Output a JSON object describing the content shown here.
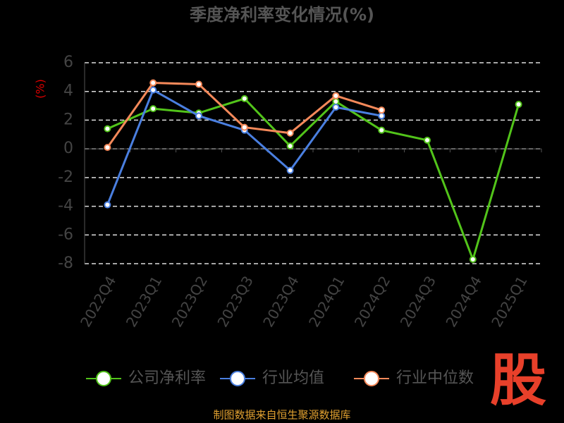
{
  "chart_data": {
    "type": "line",
    "title": "季度净利率变化情况(%)",
    "y_label": "(%)",
    "categories": [
      "2022Q4",
      "2023Q1",
      "2023Q2",
      "2023Q3",
      "2023Q4",
      "2024Q1",
      "2024Q2",
      "2024Q3",
      "2024Q4",
      "2025Q1"
    ],
    "series": [
      {
        "name": "公司净利率",
        "color": "#52c41a",
        "values": [
          1.4,
          2.8,
          2.5,
          3.5,
          0.2,
          3.3,
          1.3,
          0.6,
          -7.7,
          3.1
        ]
      },
      {
        "name": "行业均值",
        "color": "#4a7fe0",
        "values": [
          -3.9,
          4.1,
          2.3,
          1.3,
          -1.5,
          2.9,
          2.3,
          null,
          null,
          null
        ]
      },
      {
        "name": "行业中位数",
        "color": "#f5895a",
        "values": [
          0.1,
          4.6,
          4.5,
          1.5,
          1.1,
          3.7,
          2.7,
          null,
          null,
          null
        ]
      }
    ],
    "ylim": [
      -8,
      6
    ],
    "yticks": [
      -8,
      -6,
      -4,
      -2,
      0,
      2,
      4,
      6
    ],
    "grid": true,
    "source": "制图数据来自恒生聚源数据库",
    "logo": "股"
  }
}
